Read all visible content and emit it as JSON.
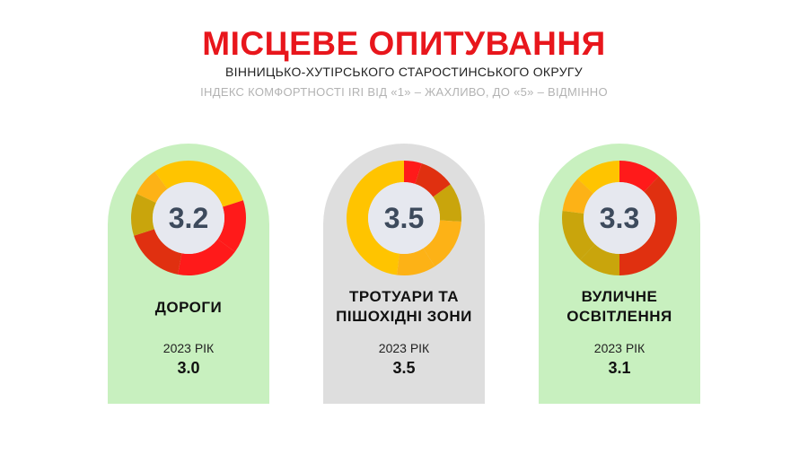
{
  "header": {
    "title": "МІСЦЕВЕ ОПИТУВАННЯ",
    "subtitle": "ВІННИЦЬКО-ХУТІРСЬКОГО СТАРОСТИНСЬКОГО ОКРУГУ",
    "index_note": "ІНДЕКС КОМФОРТНОСТІ IRI ВІД «1» – ЖАХЛИВО, ДО «5» – ВІДМІННО"
  },
  "colors": {
    "title": "#e8161c",
    "card_green": "#c8f0bf",
    "card_gray": "#dedede",
    "center": "#e6e8ef",
    "score_text": "#3d4a5c"
  },
  "chart_data": {
    "type": "donut",
    "rating_scale": [
      1,
      5
    ],
    "categories": [
      "ДОРОГИ",
      "ТРОТУАРИ ТА ПІШОХІДНІ ЗОНИ",
      "ВУЛИЧНЕ ОСВІТЛЕННЯ"
    ],
    "score_2024": [
      3.2,
      3.5,
      3.3
    ],
    "score_2023": [
      3.0,
      3.5,
      3.1
    ],
    "year_label": "2023 РІК",
    "segments_palette": [
      "#ff1a1a",
      "#e03010",
      "#ffc400",
      "#fdb216",
      "#c9a50c"
    ],
    "cards": [
      {
        "label_lines": [
          "ДОРОГИ"
        ],
        "score": "3.2",
        "year": "2023 РІК",
        "prev_score": "3.0",
        "background": "green",
        "segments": [
          {
            "share": 0.2,
            "color": "#ffc400"
          },
          {
            "share": 0.15,
            "color": "#ff1a1a"
          },
          {
            "share": 0.18,
            "color": "#ff1a1a"
          },
          {
            "share": 0.17,
            "color": "#e03010"
          },
          {
            "share": 0.12,
            "color": "#c9a50c"
          },
          {
            "share": 0.08,
            "color": "#fdb216"
          },
          {
            "share": 0.1,
            "color": "#ffc400"
          }
        ]
      },
      {
        "label_lines": [
          "ТРОТУАРИ ТА",
          "ПІШОХІДНІ ЗОНИ"
        ],
        "score": "3.5",
        "year": "2023 РІК",
        "prev_score": "3.5",
        "background": "gray",
        "segments": [
          {
            "share": 0.05,
            "color": "#ff1a1a"
          },
          {
            "share": 0.1,
            "color": "#e03010"
          },
          {
            "share": 0.11,
            "color": "#c9a50c"
          },
          {
            "share": 0.15,
            "color": "#fdb216"
          },
          {
            "share": 0.11,
            "color": "#fdb216"
          },
          {
            "share": 0.48,
            "color": "#ffc400"
          }
        ]
      },
      {
        "label_lines": [
          "ВУЛИЧНЕ",
          "ОСВІТЛЕННЯ"
        ],
        "score": "3.3",
        "year": "2023 РІК",
        "prev_score": "3.1",
        "background": "green",
        "segments": [
          {
            "share": 0.12,
            "color": "#ff1a1a"
          },
          {
            "share": 0.38,
            "color": "#e03010"
          },
          {
            "share": 0.12,
            "color": "#c9a50c"
          },
          {
            "share": 0.15,
            "color": "#c9a50c"
          },
          {
            "share": 0.1,
            "color": "#fdb216"
          },
          {
            "share": 0.13,
            "color": "#ffc400"
          }
        ]
      }
    ]
  }
}
